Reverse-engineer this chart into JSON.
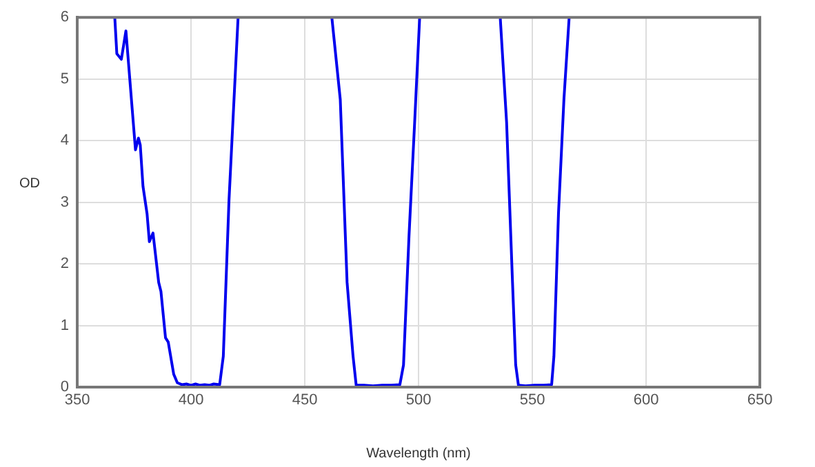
{
  "chart_data": {
    "type": "line",
    "xlabel": "Wavelength (nm)",
    "ylabel": "OD",
    "xlim": [
      350,
      650
    ],
    "xticks": [
      350,
      400,
      450,
      500,
      550,
      600,
      650
    ],
    "ylim": [
      0,
      6
    ],
    "yticks": [
      0,
      1,
      2,
      3,
      4,
      5,
      6
    ],
    "grid": true,
    "legend": false,
    "marker": "none",
    "line_style": "solid",
    "series": [
      {
        "color": "#0000ee",
        "x": [
          366.5,
          367.4,
          369.4,
          371.4,
          375.6,
          376.9,
          377.7,
          378.9,
          380.7,
          381.7,
          383.3,
          385.8,
          386.8,
          388.8,
          390,
          392.4,
          394,
          396,
          398,
          400,
          402,
          404,
          406,
          408,
          410,
          412.6,
          414.2,
          416.7,
          420.7,
          440,
          461.9,
          465.6,
          468.6,
          471.2,
          472.6,
          476,
          480,
          484,
          488,
          491.8,
          493.4,
          495.8,
          498.3,
          500.5,
          520,
          535.9,
          538.7,
          541.3,
          542.7,
          543.9,
          547,
          551,
          555,
          558.5,
          559.5,
          561.5,
          563.9,
          566.2
        ],
        "values": [
          6,
          5.41,
          5.32,
          5.78,
          3.85,
          4.04,
          3.93,
          3.26,
          2.81,
          2.36,
          2.5,
          1.7,
          1.55,
          0.8,
          0.73,
          0.21,
          0.07,
          0.04,
          0.05,
          0.03,
          0.05,
          0.03,
          0.04,
          0.03,
          0.05,
          0.04,
          0.5,
          3.03,
          6,
          null,
          6,
          4.67,
          1.7,
          0.51,
          0.03,
          0.03,
          0.02,
          0.03,
          0.03,
          0.04,
          0.36,
          2.44,
          4.3,
          6,
          null,
          6,
          4.3,
          1.7,
          0.36,
          0.03,
          0.02,
          0.03,
          0.03,
          0.04,
          0.5,
          2.81,
          4.67,
          6
        ]
      }
    ]
  }
}
